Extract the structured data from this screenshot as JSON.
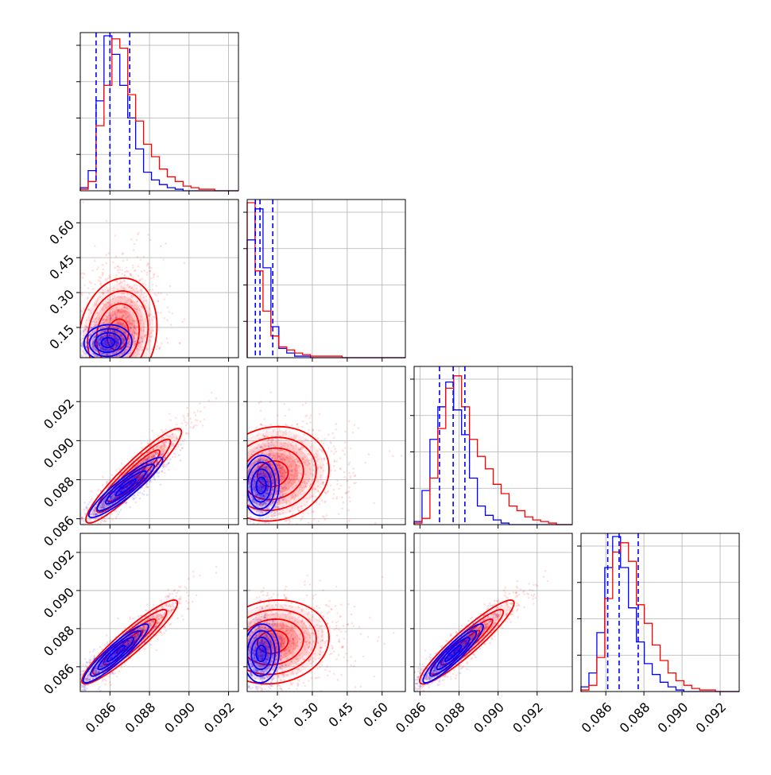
{
  "chart_data": {
    "type": "corner",
    "grid": true,
    "colors": {
      "series_a": "#0000ff",
      "series_b": "#ff0000",
      "grid": "#b0b0b0"
    },
    "parameters": [
      {
        "range": [
          0.0845,
          0.0925
        ],
        "ticks": [
          "0.086",
          "0.088",
          "0.090",
          "0.092"
        ],
        "tick_values": [
          0.086,
          0.088,
          0.09,
          0.092
        ]
      },
      {
        "range": [
          0.02,
          0.7
        ],
        "ticks": [
          "0.15",
          "0.30",
          "0.45",
          "0.60"
        ],
        "tick_values": [
          0.15,
          0.3,
          0.45,
          0.6
        ]
      },
      {
        "range": [
          0.0857,
          0.0938
        ],
        "ticks": [
          "0.086",
          "0.088",
          "0.090",
          "0.092"
        ],
        "tick_values": [
          0.086,
          0.088,
          0.09,
          0.092
        ]
      },
      {
        "range": [
          0.0847,
          0.093
        ],
        "ticks": [
          "0.086",
          "0.088",
          "0.090",
          "0.092"
        ],
        "tick_values": [
          0.086,
          0.088,
          0.09,
          0.092
        ]
      }
    ],
    "ylabels_shown": [
      {
        "row": 1,
        "ticks": [
          "0.15",
          "0.30",
          "0.45",
          "0.60"
        ],
        "tick_values": [
          0.15,
          0.3,
          0.45,
          0.6
        ]
      },
      {
        "row": 2,
        "ticks": [
          "0.086",
          "0.088",
          "0.090",
          "0.092"
        ],
        "tick_values": [
          0.086,
          0.088,
          0.09,
          0.092
        ]
      },
      {
        "row": 3,
        "ticks": [
          "0.086",
          "0.088",
          "0.090",
          "0.092"
        ],
        "tick_values": [
          0.086,
          0.088,
          0.09,
          0.092
        ]
      }
    ],
    "diagonal": [
      {
        "quantiles": [
          0.0853,
          0.086,
          0.087
        ],
        "hist_a": [
          0.02,
          0.13,
          0.58,
          1.0,
          0.88,
          0.68,
          0.47,
          0.27,
          0.12,
          0.07,
          0.04,
          0.02,
          0.01,
          0.0,
          0.0,
          0.0,
          0.0,
          0.0,
          0.0,
          0.0
        ],
        "hist_b": [
          0.01,
          0.06,
          0.42,
          0.68,
          0.98,
          0.92,
          0.62,
          0.45,
          0.3,
          0.22,
          0.14,
          0.09,
          0.06,
          0.03,
          0.02,
          0.01,
          0.01,
          0.0,
          0.0,
          0.0
        ]
      },
      {
        "quantiles": [
          0.055,
          0.075,
          0.13
        ],
        "hist_a": [
          0.76,
          0.96,
          0.58,
          0.2,
          0.06,
          0.03,
          0.01,
          0.01,
          0.0,
          0.0,
          0.0,
          0.0,
          0.0,
          0.0,
          0.0,
          0.0,
          0.0,
          0.0,
          0.0,
          0.0
        ],
        "hist_b": [
          1.0,
          0.56,
          0.3,
          0.14,
          0.07,
          0.05,
          0.03,
          0.02,
          0.01,
          0.01,
          0.01,
          0.01,
          0.0,
          0.0,
          0.0,
          0.0,
          0.0,
          0.0,
          0.0,
          0.0
        ]
      },
      {
        "quantiles": [
          0.087,
          0.0877,
          0.0883
        ],
        "hist_a": [
          0.02,
          0.22,
          0.55,
          0.76,
          0.92,
          0.74,
          0.58,
          0.3,
          0.12,
          0.06,
          0.03,
          0.01,
          0.0,
          0.0,
          0.0,
          0.0,
          0.0,
          0.0,
          0.0,
          0.0
        ],
        "hist_b": [
          0.01,
          0.04,
          0.3,
          0.62,
          0.88,
          0.96,
          0.76,
          0.55,
          0.44,
          0.36,
          0.26,
          0.2,
          0.12,
          0.09,
          0.05,
          0.03,
          0.02,
          0.01,
          0.0,
          0.0
        ]
      },
      {
        "quantiles": [
          0.0861,
          0.0867,
          0.0877
        ],
        "hist_a": [
          0.03,
          0.12,
          0.38,
          0.8,
          1.0,
          0.8,
          0.54,
          0.32,
          0.18,
          0.11,
          0.06,
          0.03,
          0.01,
          0.0,
          0.0,
          0.0,
          0.0,
          0.0,
          0.0,
          0.0
        ],
        "hist_b": [
          0.01,
          0.04,
          0.22,
          0.6,
          0.9,
          0.96,
          0.84,
          0.56,
          0.44,
          0.3,
          0.2,
          0.12,
          0.07,
          0.04,
          0.02,
          0.01,
          0.01,
          0.0,
          0.0,
          0.0
        ]
      }
    ],
    "pairs": [
      {
        "row": 1,
        "col": 0,
        "a": {
          "center": [
            0.0859,
            0.085
          ],
          "sx": 0.00055,
          "sy": 0.035,
          "rho": 0.05,
          "n": 900
        },
        "b": {
          "center": [
            0.0864,
            0.12
          ],
          "sx": 0.0009,
          "sy": 0.11,
          "rho": 0.15,
          "n": 900
        }
      },
      {
        "row": 2,
        "col": 0,
        "a": {
          "center": [
            0.0868,
            0.0876
          ],
          "sx": 0.00085,
          "sy": 0.0007,
          "rho": 0.92,
          "n": 900
        },
        "b": {
          "center": [
            0.0872,
            0.0882
          ],
          "sx": 0.0011,
          "sy": 0.0011,
          "rho": 0.93,
          "n": 900
        }
      },
      {
        "row": 2,
        "col": 1,
        "a": {
          "center": [
            0.08,
            0.0877
          ],
          "sx": 0.035,
          "sy": 0.0007,
          "rho": 0.05,
          "n": 900
        },
        "b": {
          "center": [
            0.13,
            0.0883
          ],
          "sx": 0.11,
          "sy": 0.0011,
          "rho": 0.1,
          "n": 900
        }
      },
      {
        "row": 3,
        "col": 0,
        "a": {
          "center": [
            0.0863,
            0.0867
          ],
          "sx": 0.00075,
          "sy": 0.0007,
          "rho": 0.92,
          "n": 900
        },
        "b": {
          "center": [
            0.087,
            0.0873
          ],
          "sx": 0.0011,
          "sy": 0.001,
          "rho": 0.93,
          "n": 900
        }
      },
      {
        "row": 3,
        "col": 1,
        "a": {
          "center": [
            0.08,
            0.0867
          ],
          "sx": 0.035,
          "sy": 0.0007,
          "rho": 0.05,
          "n": 900
        },
        "b": {
          "center": [
            0.13,
            0.0873
          ],
          "sx": 0.11,
          "sy": 0.001,
          "rho": 0.1,
          "n": 900
        }
      },
      {
        "row": 3,
        "col": 2,
        "a": {
          "center": [
            0.0877,
            0.0867
          ],
          "sx": 0.0007,
          "sy": 0.0007,
          "rho": 0.92,
          "n": 900
        },
        "b": {
          "center": [
            0.0884,
            0.0873
          ],
          "sx": 0.0011,
          "sy": 0.001,
          "rho": 0.93,
          "n": 900
        }
      }
    ]
  }
}
